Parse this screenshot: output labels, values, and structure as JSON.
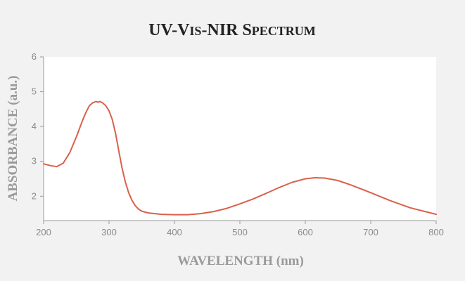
{
  "chart_data": {
    "type": "line",
    "title": "UV-Vis-NIR Spectrum",
    "xlabel": "WAVELENGTH (nm)",
    "ylabel": "ABSORBANCE (a.u.)",
    "xlim": [
      200,
      800
    ],
    "ylim": [
      1.3,
      6
    ],
    "x_ticks": [
      200,
      300,
      400,
      500,
      600,
      700,
      800
    ],
    "y_ticks": [
      2,
      3,
      4,
      5,
      6
    ],
    "grid": false,
    "colors": {
      "line": "#d9614b",
      "axis": "#9a9a9a",
      "plot_background": "#ffffff",
      "page_background": "#f2f2f2"
    },
    "series": [
      {
        "x": [
          200,
          210,
          220,
          230,
          240,
          250,
          260,
          265,
          270,
          275,
          280,
          283,
          286,
          290,
          295,
          300,
          305,
          310,
          315,
          320,
          325,
          330,
          335,
          340,
          345,
          350,
          360,
          370,
          380,
          400,
          420,
          440,
          460,
          480,
          500,
          520,
          540,
          560,
          580,
          600,
          615,
          630,
          650,
          670,
          700,
          730,
          760,
          800
        ],
        "y": [
          2.93,
          2.88,
          2.85,
          2.95,
          3.25,
          3.7,
          4.2,
          4.42,
          4.6,
          4.68,
          4.72,
          4.7,
          4.72,
          4.68,
          4.6,
          4.45,
          4.2,
          3.8,
          3.3,
          2.8,
          2.4,
          2.1,
          1.88,
          1.73,
          1.63,
          1.57,
          1.52,
          1.5,
          1.48,
          1.47,
          1.47,
          1.5,
          1.56,
          1.65,
          1.78,
          1.92,
          2.08,
          2.25,
          2.4,
          2.5,
          2.53,
          2.52,
          2.45,
          2.32,
          2.1,
          1.87,
          1.67,
          1.48
        ]
      }
    ]
  }
}
